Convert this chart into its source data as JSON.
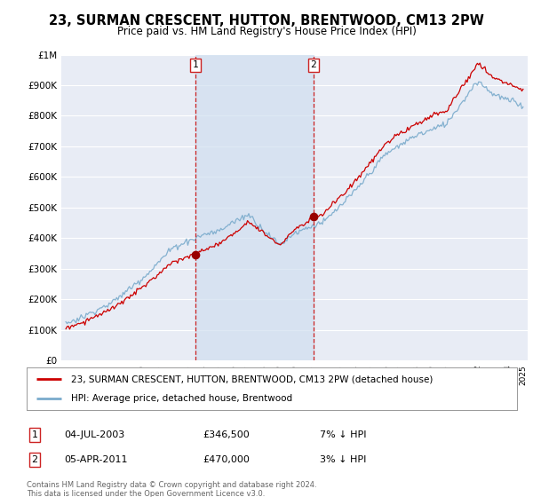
{
  "title": "23, SURMAN CRESCENT, HUTTON, BRENTWOOD, CM13 2PW",
  "subtitle": "Price paid vs. HM Land Registry's House Price Index (HPI)",
  "ylabel_ticks": [
    "£0",
    "£100K",
    "£200K",
    "£300K",
    "£400K",
    "£500K",
    "£600K",
    "£700K",
    "£800K",
    "£900K"
  ],
  "ytick_values": [
    0,
    100000,
    200000,
    300000,
    400000,
    500000,
    600000,
    700000,
    800000,
    900000
  ],
  "ylim": [
    0,
    1000000
  ],
  "ytop_label": "£1M",
  "xlim_start": 1994.7,
  "xlim_end": 2025.3,
  "background_color": "#f5f5f5",
  "plot_bg_color": "#e8ecf5",
  "grid_color": "#ffffff",
  "shade_color": "#d0dff0",
  "sale1_x": 2003.5,
  "sale1_y": 346500,
  "sale2_x": 2011.25,
  "sale2_y": 470000,
  "sale1_label": "04-JUL-2003",
  "sale1_price": "£346,500",
  "sale1_note": "7% ↓ HPI",
  "sale2_label": "05-APR-2011",
  "sale2_price": "£470,000",
  "sale2_note": "3% ↓ HPI",
  "legend_line1": "23, SURMAN CRESCENT, HUTTON, BRENTWOOD, CM13 2PW (detached house)",
  "legend_line2": "HPI: Average price, detached house, Brentwood",
  "footer": "Contains HM Land Registry data © Crown copyright and database right 2024.\nThis data is licensed under the Open Government Licence v3.0.",
  "line_color_red": "#cc0000",
  "line_color_blue": "#7aabcc",
  "marker_color_red": "#990000",
  "vline_color": "#cc2222"
}
